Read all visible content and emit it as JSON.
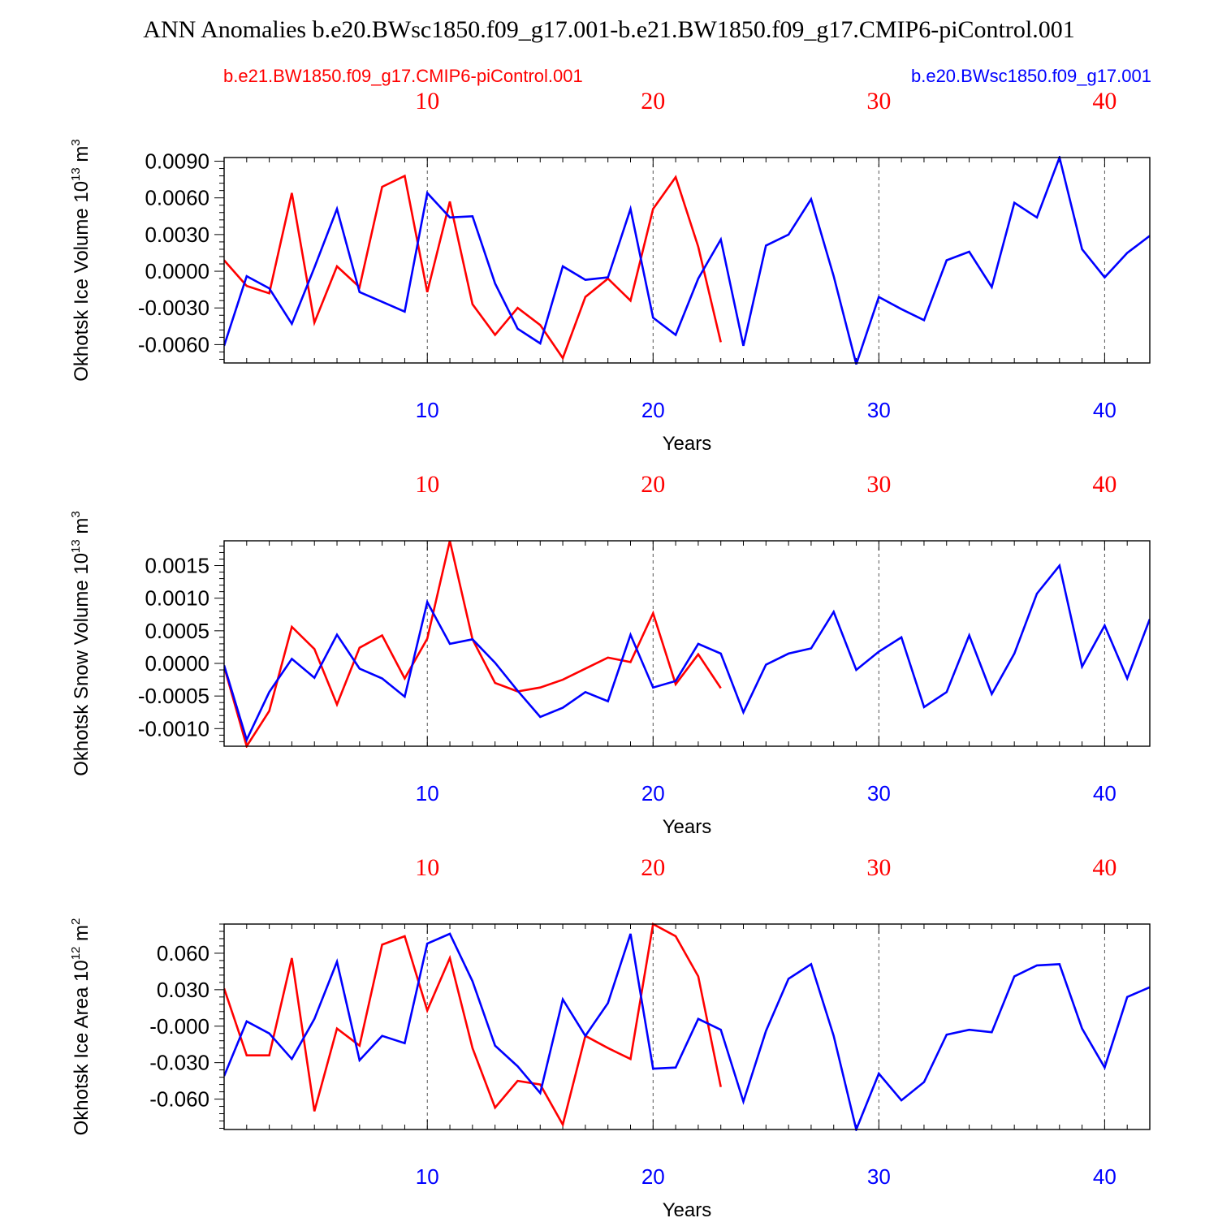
{
  "title": "ANN Anomalies b.e20.BWsc1850.f09_g17.001-b.e21.BW1850.f09_g17.CMIP6-piControl.001",
  "legend": {
    "red_label": "b.e21.BW1850.f09_g17.CMIP6-piControl.001",
    "blue_label": "b.e20.BWsc1850.f09_g17.001"
  },
  "colors": {
    "red": "#ff0000",
    "blue": "#0000ff",
    "axis": "#000000"
  },
  "chart_data": [
    {
      "type": "line",
      "ylabel_main": "Okhotsk Ice Volume 10",
      "ylabel_exp": "13",
      "ylabel_unit": " m",
      "ylabel_unit_exp": "3",
      "xlabel": "Years",
      "xlim": [
        1,
        42
      ],
      "ylim": [
        -0.0075,
        0.0093
      ],
      "yticks": [
        -0.006,
        -0.003,
        0.0,
        0.003,
        0.006,
        0.009
      ],
      "ytick_labels": [
        "-0.0060",
        "-0.0030",
        "0.0000",
        "0.0030",
        "0.0060",
        "0.0090"
      ],
      "xticks": [
        10,
        20,
        30,
        40
      ],
      "xtick_labels": [
        "10",
        "20",
        "30",
        "40"
      ],
      "series": [
        {
          "name": "b.e21.BW1850.f09_g17.CMIP6-piControl.001",
          "color": "red",
          "x": [
            1,
            2,
            3,
            4,
            5,
            6,
            7,
            8,
            9,
            10,
            11,
            12,
            13,
            14,
            15,
            16,
            17,
            18,
            19,
            20,
            21,
            22,
            23
          ],
          "values": [
            0.0009,
            -0.0012,
            -0.0018,
            0.0064,
            -0.0042,
            0.0004,
            -0.0013,
            0.0069,
            0.0078,
            -0.0017,
            0.0057,
            -0.0027,
            -0.0052,
            -0.003,
            -0.0044,
            -0.0071,
            -0.0021,
            -0.0006,
            -0.0024,
            0.0051,
            0.0077,
            0.002,
            -0.0058
          ]
        },
        {
          "name": "b.e20.BWsc1850.f09_g17.001",
          "color": "blue",
          "x": [
            1,
            2,
            3,
            4,
            5,
            6,
            7,
            8,
            9,
            10,
            11,
            12,
            13,
            14,
            15,
            16,
            17,
            18,
            19,
            20,
            21,
            22,
            23,
            24,
            25,
            26,
            27,
            28,
            29,
            30,
            31,
            32,
            33,
            34,
            35,
            36,
            37,
            38,
            39,
            40,
            41,
            42
          ],
          "values": [
            -0.0061,
            -0.0004,
            -0.0014,
            -0.0043,
            0.0003,
            0.0051,
            -0.0017,
            -0.0025,
            -0.0033,
            0.0064,
            0.0044,
            0.0045,
            -0.001,
            -0.0047,
            -0.0059,
            0.0004,
            -0.0007,
            -0.0005,
            0.0051,
            -0.0038,
            -0.0052,
            -0.0006,
            0.0026,
            -0.0061,
            0.0021,
            0.003,
            0.0059,
            -0.0004,
            -0.0076,
            -0.0021,
            -0.0031,
            -0.004,
            0.0009,
            0.0016,
            -0.0013,
            0.0056,
            0.0044,
            0.0093,
            0.0018,
            -0.0005,
            0.0015,
            0.0029
          ]
        }
      ]
    },
    {
      "type": "line",
      "ylabel_main": "Okhotsk Snow Volume 10",
      "ylabel_exp": "13",
      "ylabel_unit": " m",
      "ylabel_unit_exp": "3",
      "xlabel": "Years",
      "xlim": [
        1,
        42
      ],
      "ylim": [
        -0.00127,
        0.00188
      ],
      "yticks": [
        -0.001,
        -0.0005,
        0.0,
        0.0005,
        0.001,
        0.0015
      ],
      "ytick_labels": [
        "-0.0010",
        "-0.0005",
        "0.0000",
        "0.0005",
        "0.0010",
        "0.0015"
      ],
      "xticks": [
        10,
        20,
        30,
        40
      ],
      "xtick_labels": [
        "10",
        "20",
        "30",
        "40"
      ],
      "series": [
        {
          "name": "b.e21.BW1850.f09_g17.CMIP6-piControl.001",
          "color": "red",
          "x": [
            1,
            2,
            3,
            4,
            5,
            6,
            7,
            8,
            9,
            10,
            11,
            12,
            13,
            14,
            15,
            16,
            17,
            18,
            19,
            20,
            21,
            22,
            23
          ],
          "values": [
            -5e-05,
            -0.00127,
            -0.00073,
            0.00056,
            0.00022,
            -0.00063,
            0.00024,
            0.00043,
            -0.00023,
            0.00038,
            0.00188,
            0.00037,
            -0.0003,
            -0.00043,
            -0.00037,
            -0.00025,
            -8e-05,
            9e-05,
            2e-05,
            0.00077,
            -0.00032,
            0.00014,
            -0.00038
          ]
        },
        {
          "name": "b.e20.BWsc1850.f09_g17.001",
          "color": "blue",
          "x": [
            1,
            2,
            3,
            4,
            5,
            6,
            7,
            8,
            9,
            10,
            11,
            12,
            13,
            14,
            15,
            16,
            17,
            18,
            19,
            20,
            21,
            22,
            23,
            24,
            25,
            26,
            27,
            28,
            29,
            30,
            31,
            32,
            33,
            34,
            35,
            36,
            37,
            38,
            39,
            40,
            41,
            42
          ],
          "values": [
            -3e-05,
            -0.00117,
            -0.00044,
            7e-05,
            -0.00022,
            0.00044,
            -8e-05,
            -0.00023,
            -0.00051,
            0.00094,
            0.0003,
            0.00037,
            1e-05,
            -0.00042,
            -0.00082,
            -0.00068,
            -0.00044,
            -0.00058,
            0.00044,
            -0.00037,
            -0.00027,
            0.0003,
            0.00015,
            -0.00075,
            -2e-05,
            0.00015,
            0.00023,
            0.00079,
            -0.0001,
            0.00018,
            0.0004,
            -0.00067,
            -0.00044,
            0.00043,
            -0.00047,
            0.00015,
            0.00107,
            0.0015,
            -5e-05,
            0.00058,
            -0.00023,
            0.00068
          ]
        }
      ]
    },
    {
      "type": "line",
      "ylabel_main": "Okhotsk Ice Area 10",
      "ylabel_exp": "12",
      "ylabel_unit": " m",
      "ylabel_unit_exp": "2",
      "xlabel": "Years",
      "xlim": [
        1,
        42
      ],
      "ylim": [
        -0.085,
        0.084
      ],
      "yticks": [
        -0.06,
        -0.03,
        0.0,
        0.03,
        0.06
      ],
      "ytick_labels": [
        "-0.060",
        "-0.030",
        "-0.000",
        "0.030",
        "0.060"
      ],
      "xticks": [
        10,
        20,
        30,
        40
      ],
      "xtick_labels": [
        "10",
        "20",
        "30",
        "40"
      ],
      "series": [
        {
          "name": "b.e21.BW1850.f09_g17.CMIP6-piControl.001",
          "color": "red",
          "x": [
            1,
            2,
            3,
            4,
            5,
            6,
            7,
            8,
            9,
            10,
            11,
            12,
            13,
            14,
            15,
            16,
            17,
            18,
            19,
            20,
            21,
            22,
            23
          ],
          "values": [
            0.031,
            -0.024,
            -0.024,
            0.056,
            -0.07,
            -0.002,
            -0.016,
            0.067,
            0.074,
            0.013,
            0.056,
            -0.018,
            -0.067,
            -0.045,
            -0.048,
            -0.081,
            -0.008,
            -0.018,
            -0.027,
            0.084,
            0.074,
            0.041,
            -0.05
          ]
        },
        {
          "name": "b.e20.BWsc1850.f09_g17.001",
          "color": "blue",
          "x": [
            1,
            2,
            3,
            4,
            5,
            6,
            7,
            8,
            9,
            10,
            11,
            12,
            13,
            14,
            15,
            16,
            17,
            18,
            19,
            20,
            21,
            22,
            23,
            24,
            25,
            26,
            27,
            28,
            29,
            30,
            31,
            32,
            33,
            34,
            35,
            36,
            37,
            38,
            39,
            40,
            41,
            42
          ],
          "values": [
            -0.041,
            0.004,
            -0.006,
            -0.027,
            0.006,
            0.053,
            -0.028,
            -0.008,
            -0.014,
            0.068,
            0.076,
            0.037,
            -0.016,
            -0.033,
            -0.055,
            0.022,
            -0.008,
            0.019,
            0.076,
            -0.035,
            -0.034,
            0.006,
            -0.003,
            -0.062,
            -0.004,
            0.039,
            0.051,
            -0.008,
            -0.085,
            -0.039,
            -0.061,
            -0.046,
            -0.007,
            -0.003,
            -0.005,
            0.041,
            0.05,
            0.051,
            -0.002,
            -0.034,
            0.024,
            0.032
          ]
        }
      ]
    }
  ]
}
